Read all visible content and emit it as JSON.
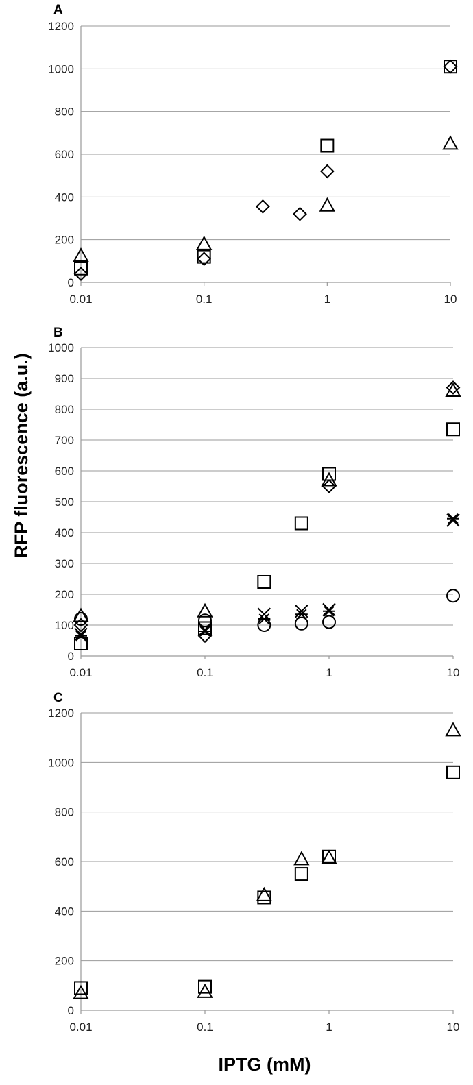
{
  "figure": {
    "ylabel": "RFP fluorescence (a.u.)",
    "xlabel": "IPTG (mM)"
  },
  "chart_data": [
    {
      "panel": "A",
      "type": "scatter",
      "x_scale": "log",
      "xlim": [
        0.01,
        10
      ],
      "xticks": [
        "0.01",
        "0.1",
        "1",
        "10"
      ],
      "ylim": [
        0,
        1200
      ],
      "yticks": [
        "0",
        "200",
        "400",
        "600",
        "800",
        "1000",
        "1200"
      ],
      "grid": true,
      "series": [
        {
          "marker": "diamond",
          "points": [
            {
              "x": 0.01,
              "y": 40
            },
            {
              "x": 0.1,
              "y": 110
            },
            {
              "x": 0.3,
              "y": 355
            },
            {
              "x": 0.6,
              "y": 320
            },
            {
              "x": 1,
              "y": 520
            },
            {
              "x": 10,
              "y": 1010
            }
          ]
        },
        {
          "marker": "square",
          "points": [
            {
              "x": 0.01,
              "y": 65
            },
            {
              "x": 0.1,
              "y": 120
            },
            {
              "x": 1,
              "y": 640
            },
            {
              "x": 10,
              "y": 1010
            }
          ]
        },
        {
          "marker": "triangle",
          "points": [
            {
              "x": 0.01,
              "y": 125
            },
            {
              "x": 0.1,
              "y": 180
            },
            {
              "x": 1,
              "y": 360
            },
            {
              "x": 10,
              "y": 650
            }
          ]
        }
      ]
    },
    {
      "panel": "B",
      "type": "scatter",
      "x_scale": "log",
      "xlim": [
        0.01,
        10
      ],
      "xticks": [
        "0.01",
        "0.1",
        "1",
        "10"
      ],
      "ylim": [
        0,
        1000
      ],
      "yticks": [
        "0",
        "100",
        "200",
        "300",
        "400",
        "500",
        "600",
        "700",
        "800",
        "900",
        "1000"
      ],
      "grid": true,
      "series": [
        {
          "marker": "diamond",
          "points": [
            {
              "x": 0.01,
              "y": 100
            },
            {
              "x": 0.1,
              "y": 65
            },
            {
              "x": 1,
              "y": 550
            },
            {
              "x": 10,
              "y": 870
            }
          ]
        },
        {
          "marker": "square",
          "points": [
            {
              "x": 0.01,
              "y": 40
            },
            {
              "x": 0.1,
              "y": 90
            },
            {
              "x": 0.3,
              "y": 240
            },
            {
              "x": 0.6,
              "y": 430
            },
            {
              "x": 1,
              "y": 590
            },
            {
              "x": 10,
              "y": 735
            }
          ]
        },
        {
          "marker": "triangle",
          "points": [
            {
              "x": 0.01,
              "y": 130
            },
            {
              "x": 0.1,
              "y": 145
            },
            {
              "x": 1,
              "y": 570
            },
            {
              "x": 10,
              "y": 860
            }
          ]
        },
        {
          "marker": "x",
          "points": [
            {
              "x": 0.01,
              "y": 70
            },
            {
              "x": 0.1,
              "y": 85
            },
            {
              "x": 0.3,
              "y": 135
            },
            {
              "x": 0.6,
              "y": 145
            },
            {
              "x": 1,
              "y": 150
            },
            {
              "x": 10,
              "y": 440
            }
          ]
        },
        {
          "marker": "star",
          "points": [
            {
              "x": 0.01,
              "y": 65
            },
            {
              "x": 0.1,
              "y": 80
            },
            {
              "x": 0.3,
              "y": 120
            },
            {
              "x": 0.6,
              "y": 135
            },
            {
              "x": 1,
              "y": 145
            },
            {
              "x": 10,
              "y": 445
            }
          ]
        },
        {
          "marker": "circle",
          "points": [
            {
              "x": 0.01,
              "y": 120
            },
            {
              "x": 0.1,
              "y": 115
            },
            {
              "x": 0.3,
              "y": 100
            },
            {
              "x": 0.6,
              "y": 105
            },
            {
              "x": 1,
              "y": 110
            },
            {
              "x": 10,
              "y": 195
            }
          ]
        }
      ]
    },
    {
      "panel": "C",
      "type": "scatter",
      "x_scale": "log",
      "xlim": [
        0.01,
        10
      ],
      "xticks": [
        "0.01",
        "0.1",
        "1",
        "10"
      ],
      "ylim": [
        0,
        1200
      ],
      "yticks": [
        "0",
        "200",
        "400",
        "600",
        "800",
        "1000",
        "1200"
      ],
      "grid": true,
      "series": [
        {
          "marker": "square",
          "points": [
            {
              "x": 0.01,
              "y": 90
            },
            {
              "x": 0.1,
              "y": 95
            },
            {
              "x": 0.3,
              "y": 455
            },
            {
              "x": 0.6,
              "y": 550
            },
            {
              "x": 1,
              "y": 620
            },
            {
              "x": 10,
              "y": 960
            }
          ]
        },
        {
          "marker": "triangle",
          "points": [
            {
              "x": 0.01,
              "y": 70
            },
            {
              "x": 0.1,
              "y": 75
            },
            {
              "x": 0.3,
              "y": 465
            },
            {
              "x": 0.6,
              "y": 610
            },
            {
              "x": 1,
              "y": 615
            },
            {
              "x": 10,
              "y": 1130
            }
          ]
        }
      ]
    }
  ]
}
